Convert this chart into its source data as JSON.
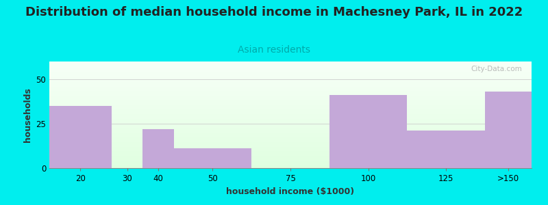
{
  "title": "Distribution of median household income in Machesney Park, IL in 2022",
  "subtitle": "Asian residents",
  "xlabel": "household income ($1000)",
  "ylabel": "households",
  "background_color": "#00EEEE",
  "bar_color": "#C4A8D8",
  "bar_edge_color": "#B090C0",
  "tick_labels": [
    "20",
    "30",
    "40",
    "50",
    "75",
    "100",
    "125",
    ">150"
  ],
  "bin_edges": [
    10,
    30,
    40,
    50,
    75,
    100,
    125,
    150,
    165
  ],
  "values": [
    35,
    0,
    22,
    11,
    0,
    41,
    21,
    43
  ],
  "ylim": [
    0,
    60
  ],
  "yticks": [
    0,
    25,
    50
  ],
  "title_fontsize": 13,
  "subtitle_fontsize": 10,
  "axis_label_fontsize": 9,
  "tick_fontsize": 8.5,
  "grid_color": "#CCCCCC",
  "watermark_text": "City-Data.com",
  "plot_bg_top": "#F8FFF8",
  "plot_bg_bottom": "#E8F8E8"
}
